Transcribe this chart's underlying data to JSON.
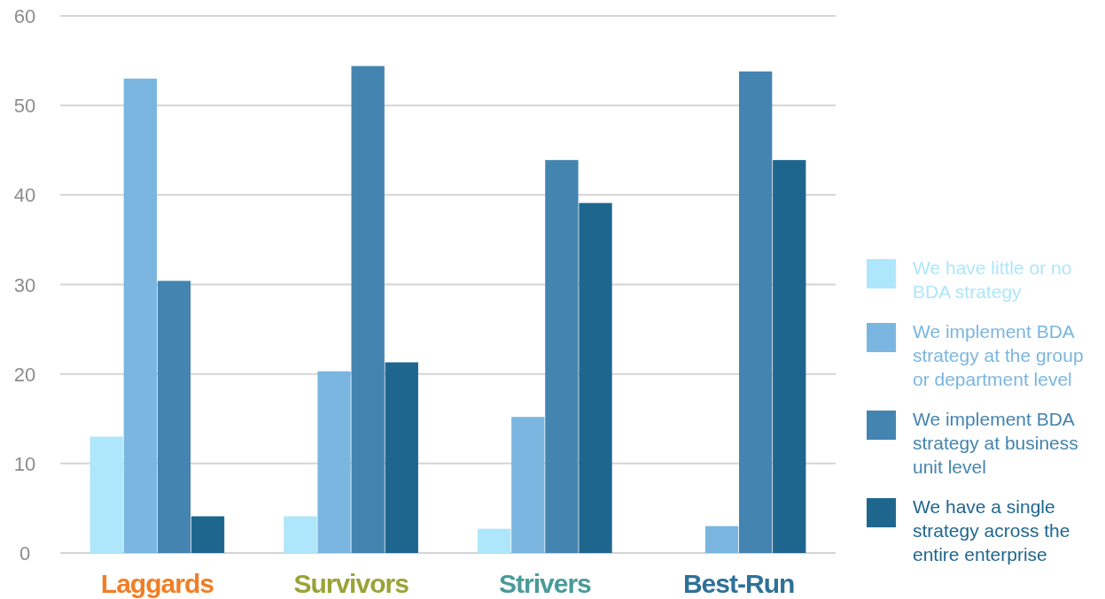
{
  "chart_data": {
    "type": "bar",
    "categories": [
      "Laggards",
      "Survivors",
      "Strivers",
      "Best-Run"
    ],
    "series": [
      {
        "name": "We have little or no BDA strategy",
        "color": "#aee6fb",
        "values": [
          13,
          4.1,
          2.7,
          0
        ]
      },
      {
        "name": "We implement BDA strategy at the group or department level",
        "color": "#7ab6e0",
        "values": [
          53,
          20.3,
          15.2,
          3
        ]
      },
      {
        "name": "We implement BDA strategy at business unit level",
        "color": "#4484b0",
        "values": [
          30.4,
          54.4,
          43.9,
          53.8
        ]
      },
      {
        "name": "We have a single strategy across the entire enterprise",
        "color": "#1f668f",
        "values": [
          4.1,
          21.3,
          39.1,
          43.9
        ]
      }
    ],
    "ylim": [
      0,
      60
    ],
    "yticks": [
      0,
      10,
      20,
      30,
      40,
      50,
      60
    ],
    "grid": "y",
    "legend": "right"
  }
}
